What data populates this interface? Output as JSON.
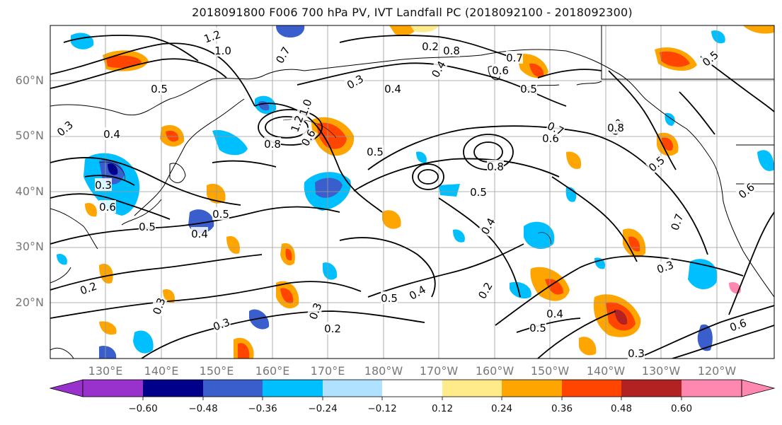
{
  "title": "2018091800 F006 700 hPa PV, IVT Landfall PC (2018092100 - 2018092300)",
  "lat_labels": [
    "60°N",
    "50°N",
    "40°N",
    "30°N",
    "20°N"
  ],
  "lon_labels": [
    "130°E",
    "140°E",
    "150°E",
    "160°E",
    "170°E",
    "180°W",
    "170°W",
    "160°W",
    "150°W",
    "140°W",
    "130°W",
    "120°W"
  ],
  "colorbar": {
    "ticks": [
      "−0.60",
      "−0.48",
      "−0.36",
      "−0.24",
      "−0.12",
      "0.12",
      "0.24",
      "0.36",
      "0.48",
      "0.60"
    ],
    "colors": [
      "#9932cc",
      "#00008b",
      "#3a5fcd",
      "#00bfff",
      "#b0e2ff",
      "#ffffff",
      "#ffeb8a",
      "#ffa500",
      "#ff4500",
      "#b22222",
      "#ff88b0"
    ]
  },
  "contour_labels": [
    "1.2",
    "1.0",
    "0.7",
    "0.5",
    "0.3",
    "0.4",
    "0.3",
    "0.6",
    "0.5",
    "0.4",
    "0.5",
    "1.2",
    "1.0",
    "0.8",
    "0.6",
    "0.4",
    "0.3",
    "0.5",
    "0.8",
    "0.6",
    "0.5",
    "0.4",
    "0.2",
    "0.7",
    "0.8",
    "0.6",
    "0.7",
    "0.8",
    "0.5",
    "0.5",
    "0.6",
    "0.7",
    "0.3",
    "0.4",
    "0.3",
    "0.2",
    "0.5",
    "0.4",
    "0.2",
    "0.3",
    "0.2",
    "0.3",
    "0.5",
    "0.4",
    "0.8",
    "0.5",
    "0.6",
    "0.3"
  ]
}
